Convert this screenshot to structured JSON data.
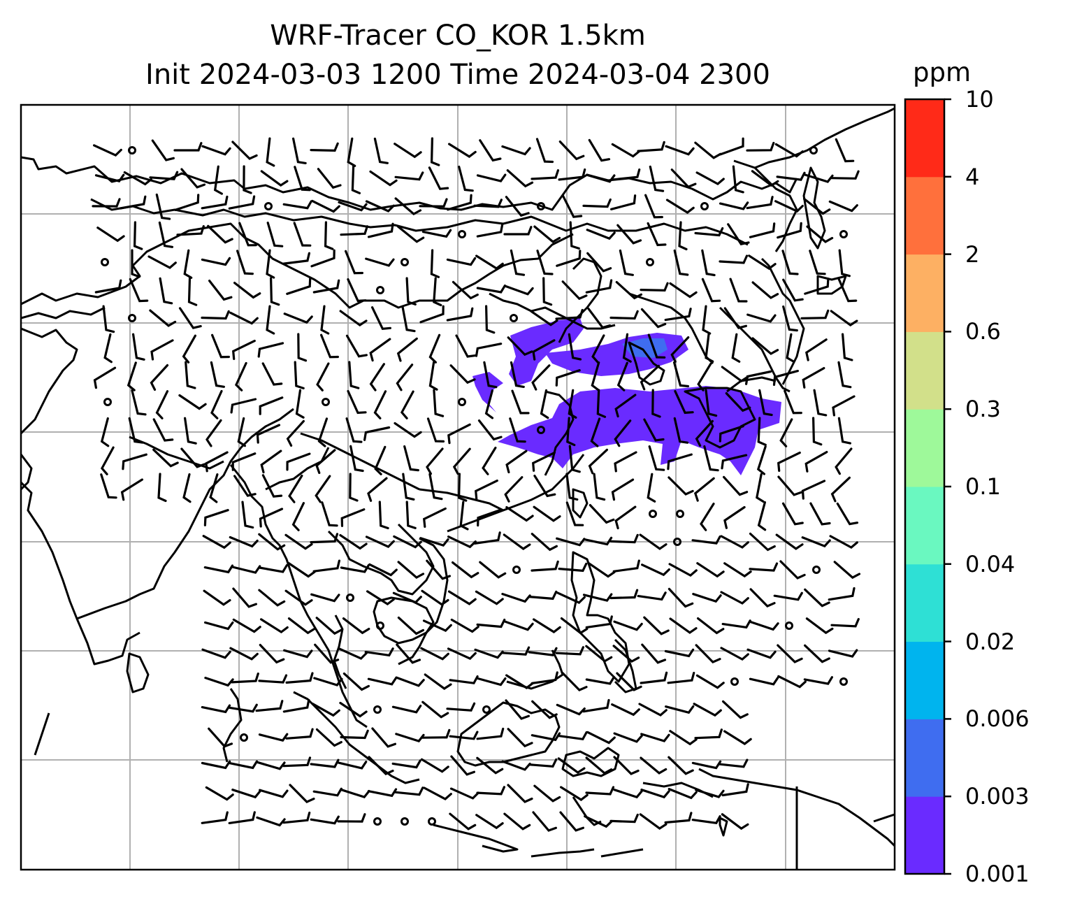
{
  "title": {
    "line1": "WRF-Tracer CO_KOR 1.5km",
    "line2": "Init 2024-03-03 1200 Time 2024-03-04 2300"
  },
  "colorbar": {
    "unit": "ppm",
    "tick_labels": [
      "10",
      "4",
      "2",
      "0.6",
      "0.3",
      "0.1",
      "0.04",
      "0.02",
      "0.006",
      "0.003",
      "0.001"
    ],
    "colors": [
      "#6a2bff",
      "#3f6df0",
      "#00b4ee",
      "#2ee0d5",
      "#6af8c0",
      "#9ef99a",
      "#d2e08a",
      "#fdb063",
      "#ff703c",
      "#ff2a18"
    ]
  },
  "map": {
    "field": "CO tracer concentration",
    "plume_color": "#6a2bff",
    "plume_peak_color": "#3f6df0",
    "wind_barbs": true,
    "grid": true,
    "coastline_color": "#000000"
  }
}
